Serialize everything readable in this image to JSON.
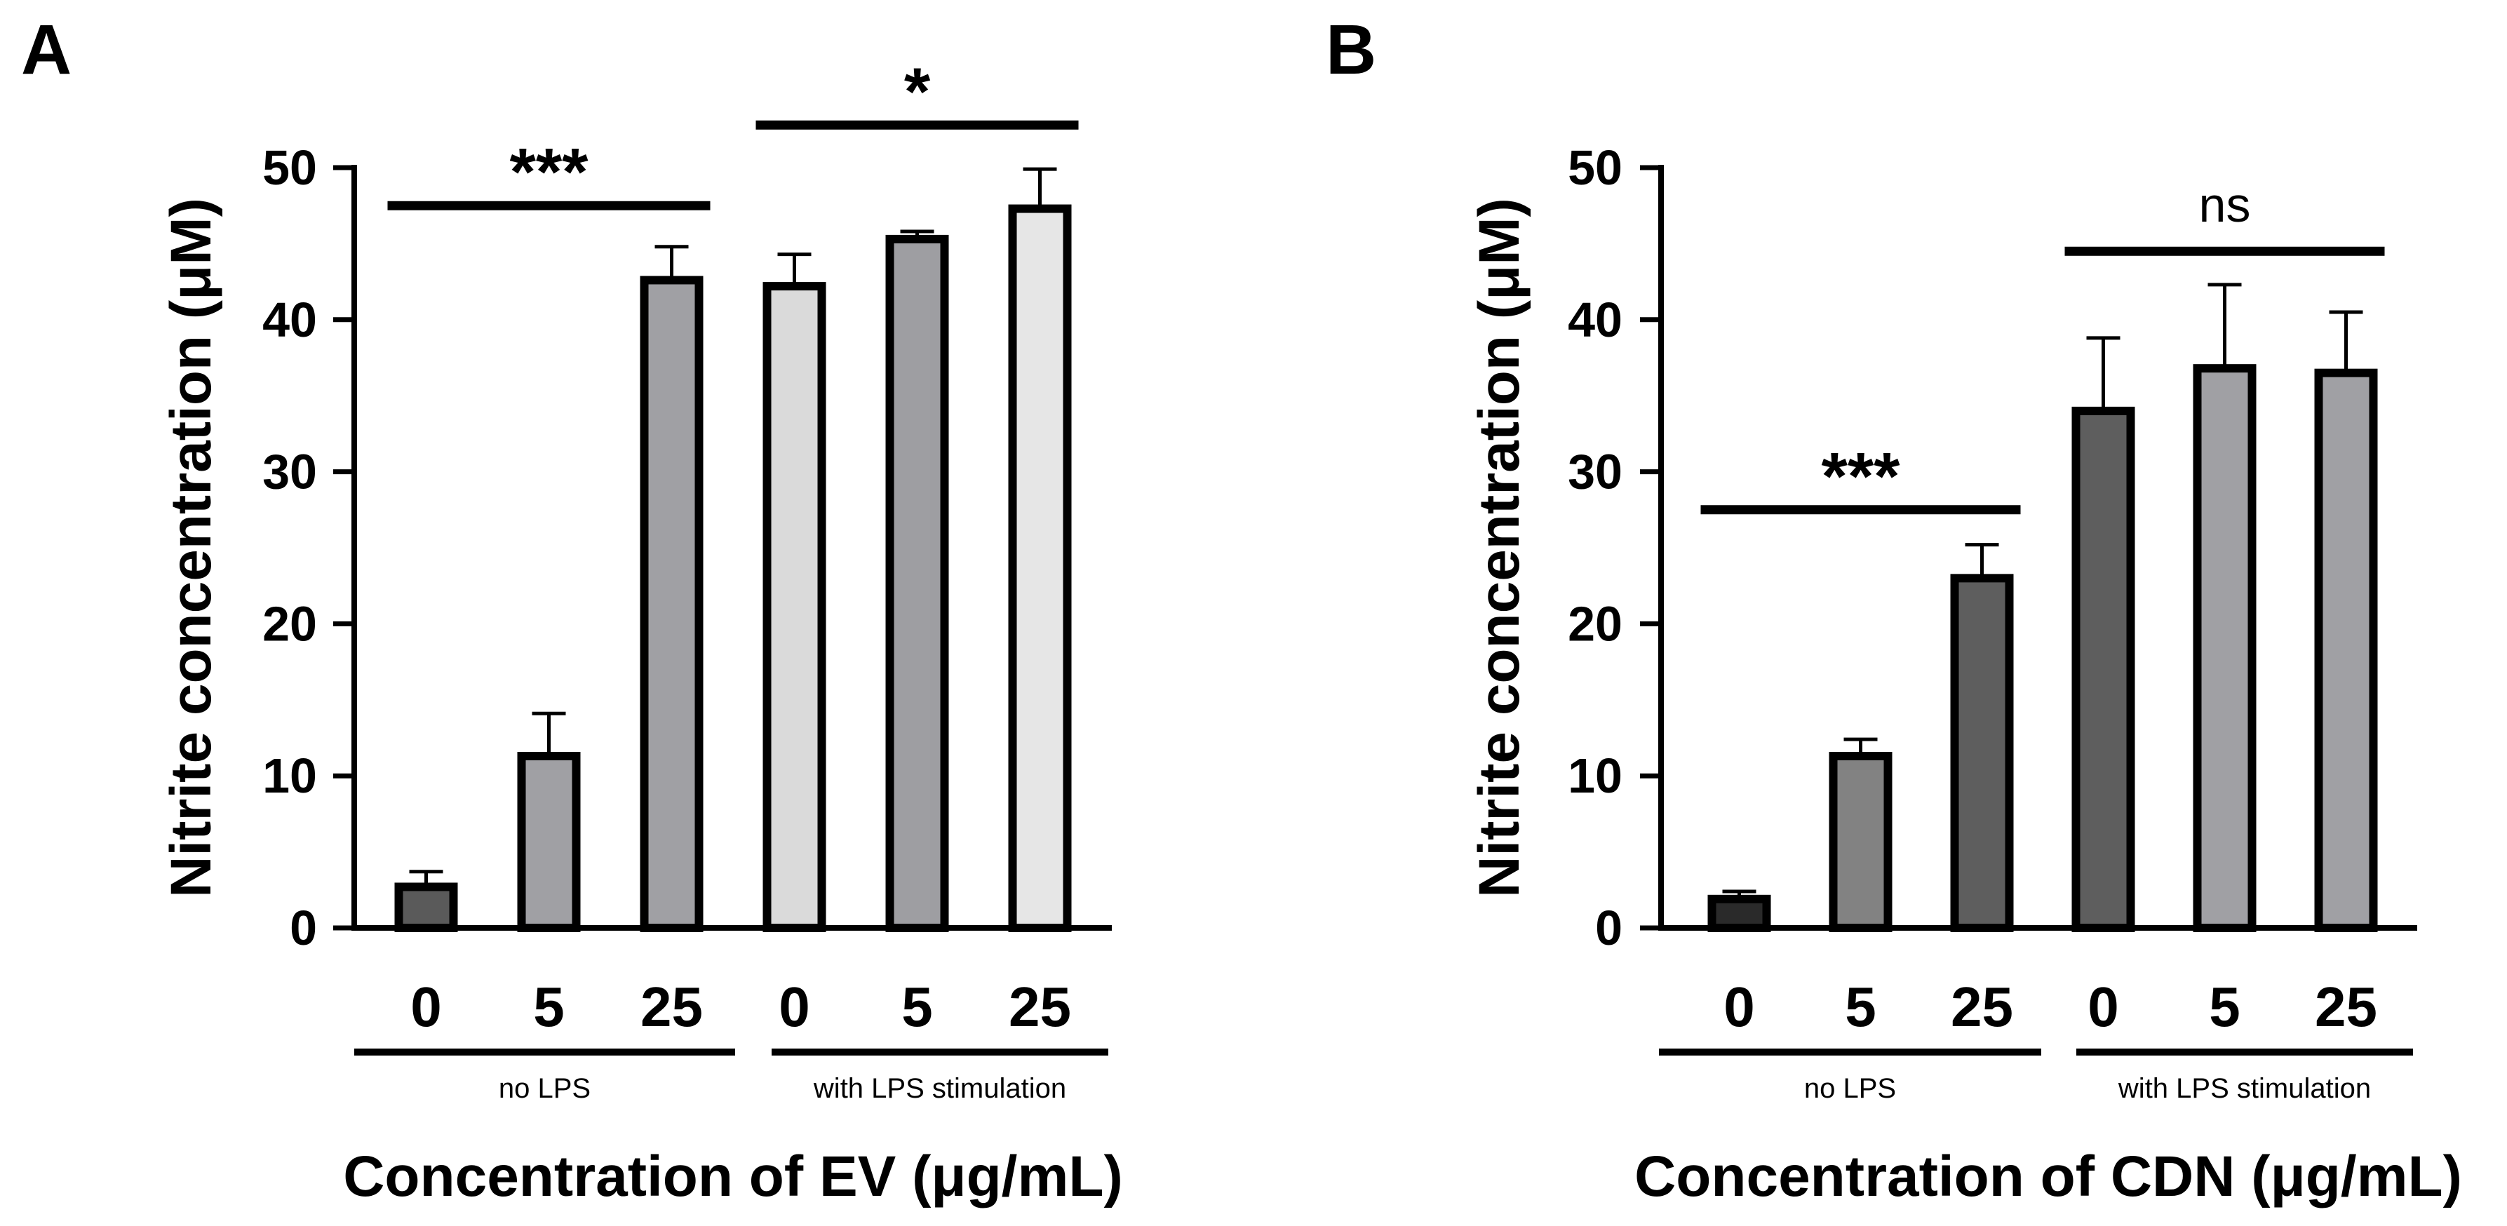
{
  "chart_data": [
    {
      "type": "bar",
      "panel_label": "A",
      "title": "",
      "xlabel": "Concentration of EV (μg/mL)",
      "ylabel": "Nitrite concentration (μM)",
      "ylim": [
        0,
        50
      ],
      "yticks": [
        "0",
        "10",
        "20",
        "30",
        "40",
        "50"
      ],
      "categories": [
        "0",
        "5",
        "25",
        "0",
        "5",
        "25"
      ],
      "values": [
        2.7,
        11.3,
        42.6,
        42.2,
        45.3,
        47.3
      ],
      "errors": [
        1.0,
        2.8,
        2.2,
        2.1,
        0.5,
        2.6
      ],
      "colors": [
        "#5a5a5a",
        "#a0a0a4",
        "#a0a0a4",
        "#dadada",
        "#9e9ea2",
        "#e6e6e6"
      ],
      "groups": [
        {
          "label": "no LPS",
          "from": 0,
          "to": 2
        },
        {
          "label": "with LPS stimulation",
          "from": 3,
          "to": 5
        }
      ],
      "significance": [
        {
          "label": "***",
          "from": 0,
          "to": 2,
          "level": 47.5
        },
        {
          "label": "*",
          "from": 3,
          "to": 5,
          "level": 52.8
        }
      ]
    },
    {
      "type": "bar",
      "panel_label": "B",
      "title": "",
      "xlabel": "Concentration of CDN (μg/mL)",
      "ylabel": "Nitrite concentration (μM)",
      "ylim": [
        0,
        50
      ],
      "yticks": [
        "0",
        "10",
        "20",
        "30",
        "40",
        "50"
      ],
      "categories": [
        "0",
        "5",
        "25",
        "0",
        "5",
        "25"
      ],
      "values": [
        1.9,
        11.3,
        23.0,
        34.0,
        36.8,
        36.5
      ],
      "errors": [
        0.5,
        1.1,
        2.2,
        4.8,
        5.5,
        4.0
      ],
      "colors": [
        "#2a2a2a",
        "#828282",
        "#5e5e5e",
        "#5e5e5e",
        "#a0a0a4",
        "#a0a0a4"
      ],
      "groups": [
        {
          "label": "no LPS",
          "from": 0,
          "to": 2
        },
        {
          "label": "with LPS stimulation",
          "from": 3,
          "to": 5
        }
      ],
      "significance": [
        {
          "label": "***",
          "from": 0,
          "to": 2,
          "level": 27.5
        },
        {
          "label": "ns",
          "from": 3,
          "to": 5,
          "level": 44.5
        }
      ]
    }
  ]
}
